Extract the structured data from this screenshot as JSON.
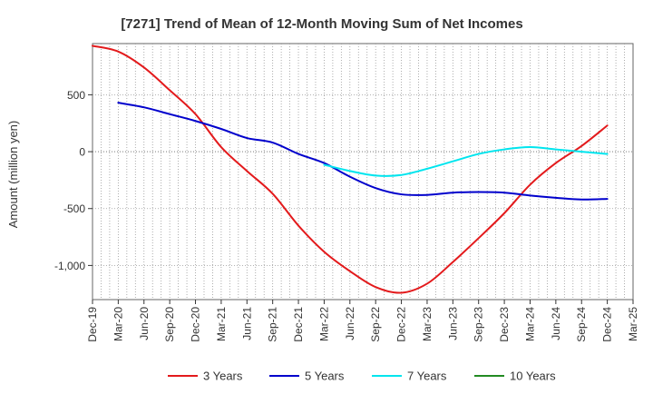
{
  "chart_data": {
    "type": "line",
    "title": "[7271]  Trend of Mean of 12-Month Moving Sum of Net Incomes",
    "ylabel": "Amount (million yen)",
    "xlabel": "",
    "ylim": [
      -1300,
      950
    ],
    "xlim": [
      "2019-12",
      "2025-03"
    ],
    "y_ticks": [
      500,
      0,
      -500,
      -1000
    ],
    "y_tick_labels": [
      "500",
      "0",
      "-500",
      "-1,000"
    ],
    "x_tick_labels": [
      "Dec-19",
      "Mar-20",
      "Jun-20",
      "Sep-20",
      "Dec-20",
      "Mar-21",
      "Jun-21",
      "Sep-21",
      "Dec-21",
      "Mar-22",
      "Jun-22",
      "Sep-22",
      "Dec-22",
      "Mar-23",
      "Jun-23",
      "Sep-23",
      "Dec-23",
      "Mar-24",
      "Jun-24",
      "Sep-24",
      "Dec-24",
      "Mar-25"
    ],
    "grid": true,
    "legend_position": "bottom",
    "series": [
      {
        "name": "3 Years",
        "color": "#e31a1c",
        "points": [
          [
            "2019-12",
            930
          ],
          [
            "2020-03",
            880
          ],
          [
            "2020-06",
            740
          ],
          [
            "2020-09",
            540
          ],
          [
            "2020-12",
            330
          ],
          [
            "2021-03",
            40
          ],
          [
            "2021-06",
            -170
          ],
          [
            "2021-09",
            -370
          ],
          [
            "2021-12",
            -650
          ],
          [
            "2022-03",
            -880
          ],
          [
            "2022-06",
            -1050
          ],
          [
            "2022-09",
            -1190
          ],
          [
            "2022-12",
            -1240
          ],
          [
            "2023-03",
            -1160
          ],
          [
            "2023-06",
            -970
          ],
          [
            "2023-09",
            -760
          ],
          [
            "2023-12",
            -540
          ],
          [
            "2024-03",
            -290
          ],
          [
            "2024-06",
            -100
          ],
          [
            "2024-09",
            50
          ],
          [
            "2024-12",
            230
          ]
        ]
      },
      {
        "name": "5 Years",
        "color": "#0000cc",
        "points": [
          [
            "2020-03",
            430
          ],
          [
            "2020-06",
            390
          ],
          [
            "2020-09",
            330
          ],
          [
            "2020-12",
            270
          ],
          [
            "2021-03",
            200
          ],
          [
            "2021-06",
            120
          ],
          [
            "2021-09",
            80
          ],
          [
            "2021-12",
            -20
          ],
          [
            "2022-03",
            -100
          ],
          [
            "2022-06",
            -220
          ],
          [
            "2022-09",
            -320
          ],
          [
            "2022-12",
            -375
          ],
          [
            "2023-03",
            -380
          ],
          [
            "2023-06",
            -360
          ],
          [
            "2023-09",
            -355
          ],
          [
            "2023-12",
            -360
          ],
          [
            "2024-03",
            -385
          ],
          [
            "2024-06",
            -405
          ],
          [
            "2024-09",
            -420
          ],
          [
            "2024-12",
            -415
          ]
        ]
      },
      {
        "name": "7 Years",
        "color": "#00e5ee",
        "points": [
          [
            "2022-03",
            -115
          ],
          [
            "2022-06",
            -170
          ],
          [
            "2022-09",
            -210
          ],
          [
            "2022-12",
            -205
          ],
          [
            "2023-03",
            -150
          ],
          [
            "2023-06",
            -85
          ],
          [
            "2023-09",
            -20
          ],
          [
            "2023-12",
            20
          ],
          [
            "2024-03",
            40
          ],
          [
            "2024-06",
            20
          ],
          [
            "2024-09",
            0
          ],
          [
            "2024-12",
            -20
          ]
        ]
      },
      {
        "name": "10 Years",
        "color": "#228b22",
        "points": []
      }
    ]
  }
}
